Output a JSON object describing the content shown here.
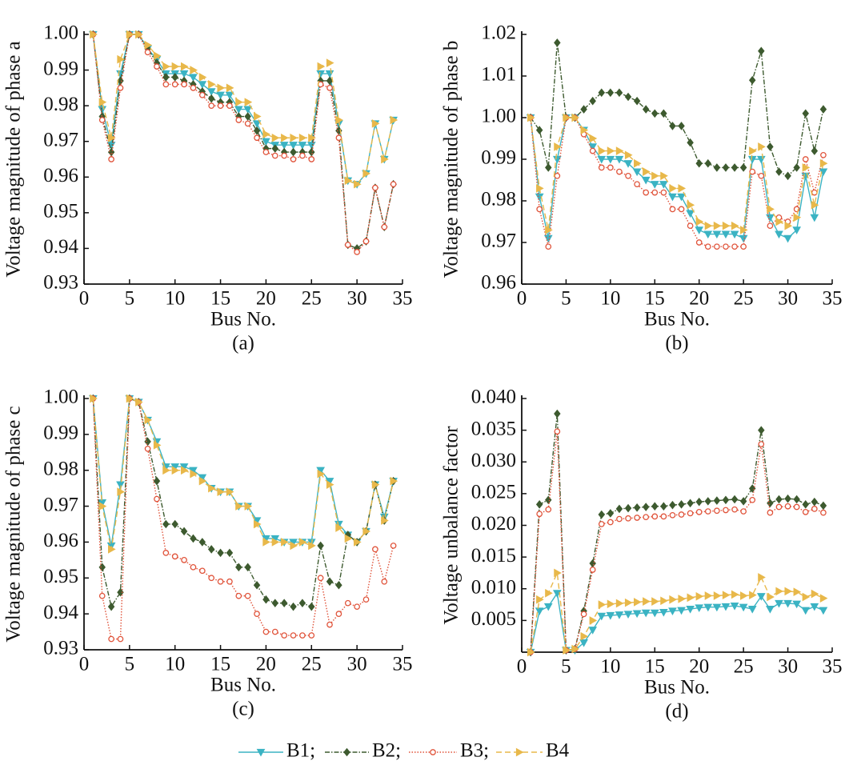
{
  "chart_data": [
    {
      "type": "line",
      "caption": "(a)",
      "ylabel": "Voltage magnitude of phase a",
      "xlabel": "Bus No.",
      "x": [
        1,
        2,
        3,
        4,
        5,
        6,
        7,
        8,
        9,
        10,
        11,
        12,
        13,
        14,
        15,
        16,
        17,
        18,
        19,
        20,
        21,
        22,
        23,
        24,
        25,
        26,
        27,
        28,
        29,
        30,
        31,
        32,
        33,
        34
      ],
      "xlim": [
        0,
        35
      ],
      "xticks": [
        0,
        5,
        10,
        15,
        20,
        25,
        30,
        35
      ],
      "ylim": [
        0.93,
        1.0
      ],
      "yticks": [
        0.93,
        0.94,
        0.95,
        0.96,
        0.97,
        0.98,
        0.99,
        {
          "value": 1.0,
          "label": "1.00"
        }
      ],
      "series": [
        {
          "name": "B1;",
          "color": "#3bb3c3",
          "values": [
            1.0,
            0.979,
            0.969,
            0.989,
            1.0,
            1.0,
            0.996,
            0.993,
            0.989,
            0.989,
            0.989,
            0.988,
            0.986,
            0.984,
            0.983,
            0.983,
            0.979,
            0.979,
            0.975,
            0.97,
            0.969,
            0.969,
            0.969,
            0.969,
            0.969,
            0.989,
            0.989,
            0.975,
            0.959,
            0.958,
            0.961,
            0.975,
            0.965,
            0.976
          ]
        },
        {
          "name": "B2;",
          "color": "#3d5a2f",
          "values": [
            1.0,
            0.977,
            0.967,
            0.987,
            1.0,
            1.0,
            0.996,
            0.992,
            0.988,
            0.988,
            0.987,
            0.986,
            0.984,
            0.982,
            0.981,
            0.981,
            0.977,
            0.977,
            0.973,
            0.968,
            0.968,
            0.967,
            0.967,
            0.967,
            0.967,
            0.987,
            0.987,
            0.973,
            0.941,
            0.94,
            0.942,
            0.957,
            0.946,
            0.958
          ]
        },
        {
          "name": "B3;",
          "color": "#e0533a",
          "values": [
            1.0,
            0.976,
            0.965,
            0.985,
            1.0,
            1.0,
            0.995,
            0.991,
            0.986,
            0.986,
            0.986,
            0.985,
            0.983,
            0.98,
            0.98,
            0.98,
            0.976,
            0.975,
            0.971,
            0.967,
            0.966,
            0.966,
            0.965,
            0.966,
            0.965,
            0.986,
            0.985,
            0.971,
            0.941,
            0.939,
            0.942,
            0.957,
            0.946,
            0.958
          ]
        },
        {
          "name": "B4",
          "color": "#e8b84a",
          "values": [
            1.0,
            0.981,
            0.971,
            0.993,
            1.0,
            1.0,
            0.997,
            0.994,
            0.991,
            0.991,
            0.991,
            0.99,
            0.988,
            0.986,
            0.985,
            0.985,
            0.981,
            0.981,
            0.977,
            0.972,
            0.971,
            0.971,
            0.971,
            0.971,
            0.971,
            0.991,
            0.992,
            0.976,
            0.959,
            0.958,
            0.961,
            0.975,
            0.965,
            0.976
          ]
        }
      ]
    },
    {
      "type": "line",
      "caption": "(b)",
      "ylabel": "Voltage magnitude of phase b",
      "xlabel": "Bus No.",
      "x": [
        1,
        2,
        3,
        4,
        5,
        6,
        7,
        8,
        9,
        10,
        11,
        12,
        13,
        14,
        15,
        16,
        17,
        18,
        19,
        20,
        21,
        22,
        23,
        24,
        25,
        26,
        27,
        28,
        29,
        30,
        31,
        32,
        33,
        34
      ],
      "xlim": [
        0,
        35
      ],
      "xticks": [
        0,
        5,
        10,
        15,
        20,
        25,
        30,
        35
      ],
      "ylim": [
        0.96,
        1.02
      ],
      "yticks": [
        0.96,
        0.97,
        0.98,
        0.99,
        {
          "value": 1.0,
          "label": "1.00"
        },
        1.01,
        1.02
      ],
      "series": [
        {
          "name": "B1;",
          "color": "#3bb3c3",
          "values": [
            1.0,
            0.981,
            0.971,
            0.99,
            1.0,
            1.0,
            0.997,
            0.993,
            0.99,
            0.99,
            0.99,
            0.989,
            0.987,
            0.985,
            0.984,
            0.984,
            0.981,
            0.981,
            0.977,
            0.973,
            0.972,
            0.972,
            0.972,
            0.972,
            0.971,
            0.99,
            0.99,
            0.976,
            0.972,
            0.971,
            0.973,
            0.986,
            0.976,
            0.987
          ]
        },
        {
          "name": "B2;",
          "color": "#3d5a2f",
          "values": [
            1.0,
            0.997,
            0.988,
            1.018,
            1.0,
            1.0,
            1.002,
            1.004,
            1.006,
            1.006,
            1.006,
            1.005,
            1.004,
            1.002,
            1.001,
            1.001,
            0.998,
            0.998,
            0.994,
            0.989,
            0.989,
            0.988,
            0.988,
            0.988,
            0.988,
            1.009,
            1.016,
            0.993,
            0.987,
            0.986,
            0.988,
            1.001,
            0.992,
            1.002
          ]
        },
        {
          "name": "B3;",
          "color": "#e0533a",
          "values": [
            1.0,
            0.978,
            0.969,
            0.986,
            1.0,
            1.0,
            0.996,
            0.992,
            0.988,
            0.988,
            0.987,
            0.986,
            0.984,
            0.982,
            0.982,
            0.982,
            0.978,
            0.978,
            0.974,
            0.97,
            0.969,
            0.969,
            0.969,
            0.969,
            0.969,
            0.987,
            0.986,
            0.974,
            0.976,
            0.975,
            0.978,
            0.99,
            0.982,
            0.991
          ]
        },
        {
          "name": "B4",
          "color": "#e8b84a",
          "values": [
            1.0,
            0.983,
            0.973,
            0.993,
            1.0,
            1.0,
            0.997,
            0.995,
            0.992,
            0.992,
            0.992,
            0.991,
            0.989,
            0.987,
            0.986,
            0.986,
            0.983,
            0.983,
            0.979,
            0.975,
            0.974,
            0.974,
            0.974,
            0.974,
            0.973,
            0.992,
            0.993,
            0.978,
            0.975,
            0.974,
            0.976,
            0.988,
            0.979,
            0.989
          ]
        }
      ]
    },
    {
      "type": "line",
      "caption": "(c)",
      "ylabel": "Voltage magnitude of phase c",
      "xlabel": "Bus No.",
      "x": [
        1,
        2,
        3,
        4,
        5,
        6,
        7,
        8,
        9,
        10,
        11,
        12,
        13,
        14,
        15,
        16,
        17,
        18,
        19,
        20,
        21,
        22,
        23,
        24,
        25,
        26,
        27,
        28,
        29,
        30,
        31,
        32,
        33,
        34
      ],
      "xlim": [
        0,
        35
      ],
      "xticks": [
        0,
        5,
        10,
        15,
        20,
        25,
        30,
        35
      ],
      "ylim": [
        0.93,
        1.0
      ],
      "yticks": [
        0.93,
        0.94,
        0.95,
        0.96,
        0.97,
        0.98,
        0.99,
        {
          "value": 1.0,
          "label": "1.00"
        }
      ],
      "series": [
        {
          "name": "B1;",
          "color": "#3bb3c3",
          "values": [
            1.0,
            0.971,
            0.959,
            0.976,
            1.0,
            0.999,
            0.994,
            0.988,
            0.981,
            0.981,
            0.981,
            0.98,
            0.978,
            0.975,
            0.974,
            0.974,
            0.97,
            0.97,
            0.966,
            0.961,
            0.961,
            0.96,
            0.96,
            0.96,
            0.96,
            0.98,
            0.977,
            0.965,
            0.962,
            0.96,
            0.963,
            0.976,
            0.967,
            0.977
          ]
        },
        {
          "name": "B2;",
          "color": "#3d5a2f",
          "values": [
            1.0,
            0.953,
            0.942,
            0.946,
            1.0,
            0.999,
            0.988,
            0.977,
            0.965,
            0.965,
            0.963,
            0.961,
            0.96,
            0.958,
            0.957,
            0.957,
            0.953,
            0.953,
            0.948,
            0.944,
            0.943,
            0.943,
            0.942,
            0.943,
            0.942,
            0.959,
            0.949,
            0.948,
            0.962,
            0.96,
            0.963,
            0.976,
            0.966,
            0.977
          ]
        },
        {
          "name": "B3;",
          "color": "#e0533a",
          "values": [
            1.0,
            0.945,
            0.933,
            0.933,
            1.0,
            0.999,
            0.986,
            0.972,
            0.957,
            0.956,
            0.955,
            0.953,
            0.952,
            0.95,
            0.949,
            0.949,
            0.945,
            0.945,
            0.94,
            0.935,
            0.935,
            0.934,
            0.934,
            0.934,
            0.934,
            0.95,
            0.937,
            0.94,
            0.943,
            0.942,
            0.944,
            0.958,
            0.949,
            0.959
          ]
        },
        {
          "name": "B4",
          "color": "#e8b84a",
          "values": [
            1.0,
            0.97,
            0.958,
            0.974,
            1.0,
            0.999,
            0.994,
            0.987,
            0.98,
            0.98,
            0.98,
            0.979,
            0.977,
            0.975,
            0.974,
            0.974,
            0.97,
            0.97,
            0.965,
            0.96,
            0.96,
            0.96,
            0.959,
            0.96,
            0.959,
            0.979,
            0.976,
            0.964,
            0.961,
            0.96,
            0.963,
            0.976,
            0.966,
            0.977
          ]
        }
      ]
    },
    {
      "type": "line",
      "caption": "(d)",
      "ylabel": "Voltage unbalance factor",
      "xlabel": "Bus No.",
      "x": [
        1,
        2,
        3,
        4,
        5,
        6,
        7,
        8,
        9,
        10,
        11,
        12,
        13,
        14,
        15,
        16,
        17,
        18,
        19,
        20,
        21,
        22,
        23,
        24,
        25,
        26,
        27,
        28,
        29,
        30,
        31,
        32,
        33,
        34
      ],
      "xlim": [
        0,
        35
      ],
      "xticks": [
        0,
        5,
        10,
        15,
        20,
        25,
        30,
        35
      ],
      "ylim": [
        0,
        0.04
      ],
      "yticks": [
        0.005,
        {
          "value": 0.01,
          "label": "0.010"
        },
        0.015,
        {
          "value": 0.02,
          "label": "0.020"
        },
        0.025,
        {
          "value": 0.03,
          "label": "0.030"
        },
        0.035,
        {
          "value": 0.04,
          "label": "0.040"
        }
      ],
      "series": [
        {
          "name": "B1;",
          "color": "#3bb3c3",
          "values": [
            0,
            0.0065,
            0.0072,
            0.0093,
            0.0003,
            0.0003,
            0.0015,
            0.0035,
            0.0057,
            0.0058,
            0.0059,
            0.006,
            0.0061,
            0.0062,
            0.0062,
            0.0063,
            0.0065,
            0.0066,
            0.0068,
            0.007,
            0.0071,
            0.0071,
            0.0072,
            0.0073,
            0.0071,
            0.0068,
            0.0088,
            0.0068,
            0.0077,
            0.0077,
            0.0076,
            0.0066,
            0.0072,
            0.0066
          ]
        },
        {
          "name": "B2;",
          "color": "#3d5a2f",
          "values": [
            0,
            0.0233,
            0.024,
            0.0376,
            0.0003,
            0.0005,
            0.0065,
            0.014,
            0.0217,
            0.0219,
            0.0226,
            0.0227,
            0.0228,
            0.0229,
            0.023,
            0.023,
            0.0232,
            0.0233,
            0.0235,
            0.0237,
            0.0238,
            0.0239,
            0.024,
            0.0241,
            0.0238,
            0.0258,
            0.035,
            0.0235,
            0.0241,
            0.0242,
            0.0241,
            0.0233,
            0.0237,
            0.0231
          ]
        },
        {
          "name": "B3;",
          "color": "#e0533a",
          "values": [
            0,
            0.0218,
            0.0225,
            0.0348,
            0.0003,
            0.0005,
            0.006,
            0.013,
            0.0202,
            0.0205,
            0.021,
            0.0211,
            0.0212,
            0.0213,
            0.0214,
            0.0214,
            0.0216,
            0.0217,
            0.0219,
            0.0221,
            0.0222,
            0.0223,
            0.0224,
            0.0225,
            0.0222,
            0.024,
            0.0328,
            0.022,
            0.0229,
            0.023,
            0.0229,
            0.0221,
            0.0226,
            0.022
          ]
        },
        {
          "name": "B4",
          "color": "#e8b84a",
          "values": [
            0,
            0.0083,
            0.0093,
            0.0125,
            0.0003,
            0.0005,
            0.0025,
            0.005,
            0.0075,
            0.0076,
            0.0077,
            0.0078,
            0.0079,
            0.008,
            0.008,
            0.0081,
            0.0083,
            0.0084,
            0.0086,
            0.0088,
            0.0089,
            0.0089,
            0.009,
            0.0091,
            0.0089,
            0.009,
            0.0118,
            0.0087,
            0.0096,
            0.0096,
            0.0095,
            0.0087,
            0.0092,
            0.0085
          ]
        }
      ]
    }
  ]
}
